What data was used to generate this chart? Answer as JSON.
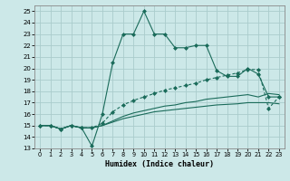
{
  "background_color": "#cce8e8",
  "grid_color": "#aacccc",
  "line_color": "#1a6b5a",
  "xlabel": "Humidex (Indice chaleur)",
  "xlim": [
    -0.5,
    23.5
  ],
  "ylim": [
    13,
    25.5
  ],
  "yticks": [
    13,
    14,
    15,
    16,
    17,
    18,
    19,
    20,
    21,
    22,
    23,
    24,
    25
  ],
  "xticks": [
    0,
    1,
    2,
    3,
    4,
    5,
    6,
    7,
    8,
    9,
    10,
    11,
    12,
    13,
    14,
    15,
    16,
    17,
    18,
    19,
    20,
    21,
    22,
    23
  ],
  "line1_x": [
    0,
    1,
    2,
    3,
    4,
    5,
    6,
    7,
    8,
    9,
    10,
    11,
    12,
    13,
    14,
    15,
    16,
    17,
    18,
    19,
    20,
    21,
    22,
    23
  ],
  "line1_y": [
    15,
    15,
    14.7,
    15,
    14.8,
    13.2,
    16.0,
    20.5,
    23.0,
    23.0,
    25.0,
    23.0,
    23.0,
    21.8,
    21.8,
    22.0,
    22.0,
    19.8,
    19.3,
    19.3,
    20.0,
    19.5,
    17.5,
    17.5
  ],
  "line2_x": [
    0,
    1,
    2,
    3,
    4,
    5,
    6,
    7,
    8,
    9,
    10,
    11,
    12,
    13,
    14,
    15,
    16,
    17,
    18,
    19,
    20,
    21,
    22,
    23
  ],
  "line2_y": [
    15,
    15,
    14.7,
    15,
    14.8,
    14.8,
    15.2,
    16.2,
    16.8,
    17.2,
    17.5,
    17.8,
    18.1,
    18.3,
    18.5,
    18.7,
    19.0,
    19.2,
    19.4,
    19.6,
    19.9,
    19.9,
    16.5,
    17.5
  ],
  "line3_x": [
    0,
    1,
    2,
    3,
    4,
    5,
    6,
    7,
    8,
    9,
    10,
    11,
    12,
    13,
    14,
    15,
    16,
    17,
    18,
    19,
    20,
    21,
    22,
    23
  ],
  "line3_y": [
    15,
    15,
    14.7,
    15,
    14.8,
    14.8,
    15.0,
    15.4,
    15.8,
    16.1,
    16.3,
    16.5,
    16.7,
    16.8,
    17.0,
    17.1,
    17.3,
    17.4,
    17.5,
    17.6,
    17.7,
    17.5,
    17.8,
    17.7
  ],
  "line4_x": [
    0,
    1,
    2,
    3,
    4,
    5,
    6,
    7,
    8,
    9,
    10,
    11,
    12,
    13,
    14,
    15,
    16,
    17,
    18,
    19,
    20,
    21,
    22,
    23
  ],
  "line4_y": [
    15,
    15,
    14.7,
    15,
    14.8,
    14.8,
    15.0,
    15.3,
    15.6,
    15.8,
    16.0,
    16.2,
    16.3,
    16.4,
    16.5,
    16.6,
    16.7,
    16.8,
    16.85,
    16.9,
    17.0,
    17.0,
    17.0,
    16.9
  ]
}
